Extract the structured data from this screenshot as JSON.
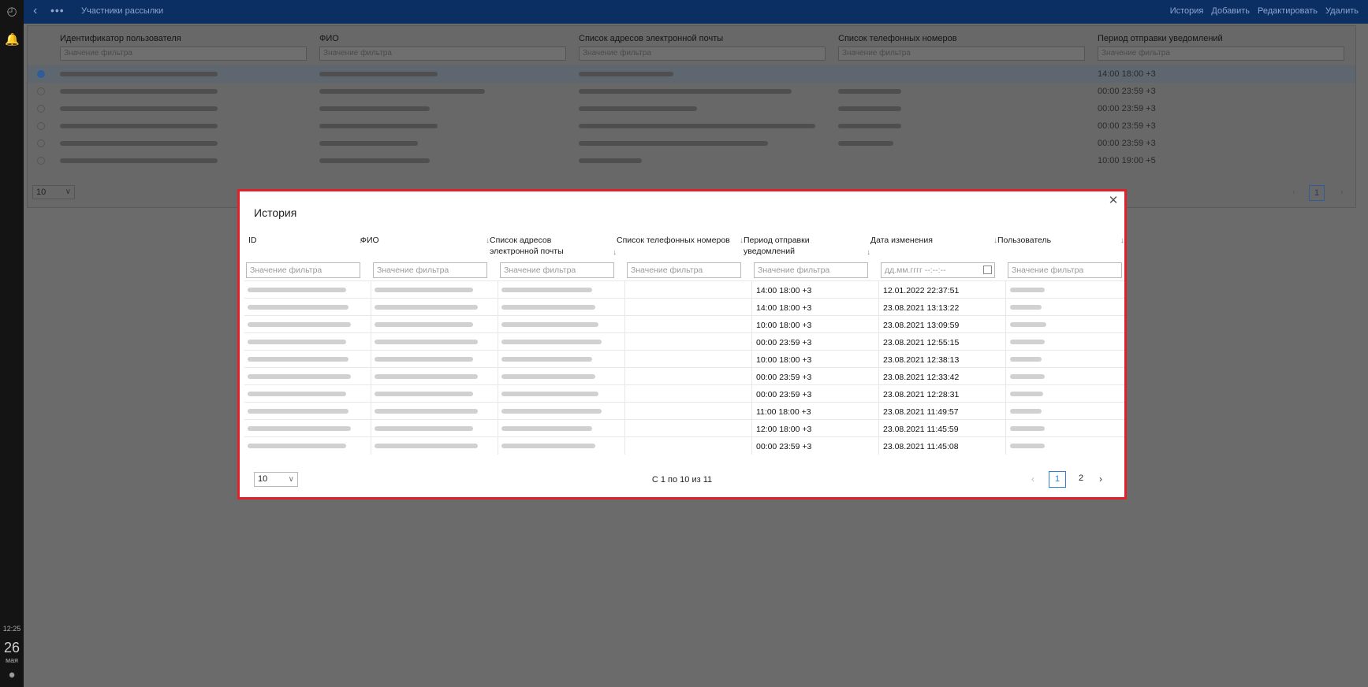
{
  "rail": {
    "time": "12:25",
    "day": "26",
    "month": "мая"
  },
  "topbar": {
    "title": "Участники рассылки",
    "actions": [
      "История",
      "Добавить",
      "Редактировать",
      "Удалить"
    ]
  },
  "background_table": {
    "columns": [
      "Идентификатор пользователя",
      "ФИО",
      "Список адресов электронной почты",
      "Список телефонных номеров",
      "Период отправки уведомлений"
    ],
    "filter_placeholder": "Значение фильтра",
    "rows": [
      {
        "period": "14:00 18:00 +3",
        "selected": true
      },
      {
        "period": "00:00 23:59 +3",
        "selected": false
      },
      {
        "period": "00:00 23:59 +3",
        "selected": false
      },
      {
        "period": "00:00 23:59 +3",
        "selected": false
      },
      {
        "period": "00:00 23:59 +3",
        "selected": false
      },
      {
        "period": "10:00 19:00 +5",
        "selected": false
      }
    ],
    "page_size": "10",
    "current_page": "1"
  },
  "modal": {
    "title": "История",
    "close_icon": "close-icon",
    "columns": {
      "id": "ID",
      "fio": "ФИО",
      "email": "Список адресов электронной почты",
      "phones": "Список телефонных номеров",
      "period": "Период отправки уведомлений",
      "changed": "Дата изменения",
      "user": "Пользователь"
    },
    "filter_placeholder": "Значение фильтра",
    "date_placeholder": "дд.мм.гггг --:--:--",
    "rows": [
      {
        "period": "14:00 18:00 +3",
        "changed": "12.01.2022 22:37:51"
      },
      {
        "period": "14:00 18:00 +3",
        "changed": "23.08.2021 13:13:22"
      },
      {
        "period": "10:00 18:00 +3",
        "changed": "23.08.2021 13:09:59"
      },
      {
        "period": "00:00 23:59 +3",
        "changed": "23.08.2021 12:55:15"
      },
      {
        "period": "10:00 18:00 +3",
        "changed": "23.08.2021 12:38:13"
      },
      {
        "period": "00:00 23:59 +3",
        "changed": "23.08.2021 12:33:42"
      },
      {
        "period": "00:00 23:59 +3",
        "changed": "23.08.2021 12:28:31"
      },
      {
        "period": "11:00 18:00 +3",
        "changed": "23.08.2021 11:49:57"
      },
      {
        "period": "12:00 18:00 +3",
        "changed": "23.08.2021 11:45:59"
      },
      {
        "period": "00:00 23:59 +3",
        "changed": "23.08.2021 11:45:08"
      }
    ],
    "page_size": "10",
    "info": "С 1 по 10 из 11",
    "pages": [
      "1",
      "2"
    ],
    "prev": "‹",
    "next": "›"
  },
  "colors": {
    "topbar": "#0c2f63",
    "modal_border": "#e3202a",
    "accent": "#2e7fd9"
  }
}
